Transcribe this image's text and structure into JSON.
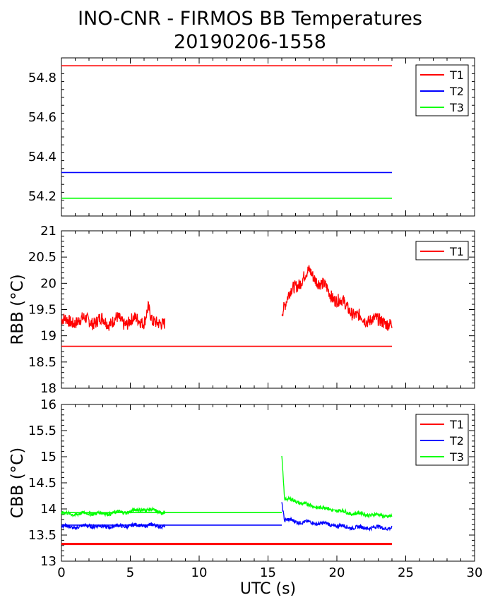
{
  "figure": {
    "title": "INO-CNR - FIRMOS BB Temperatures",
    "subtitle": "20190206-1558"
  },
  "colors": {
    "T1": "#ff0000",
    "T2": "#0000ff",
    "T3": "#00ff00",
    "axis": "#000000"
  },
  "chart_data": [
    {
      "type": "line",
      "title": "INO-CNR - FIRMOS BB Temperatures",
      "subtitle": "20190206-1558",
      "xlabel": "",
      "ylabel": "",
      "xlim": [
        0,
        30
      ],
      "ylim": [
        54.1,
        54.9
      ],
      "yticks": [
        "54.2",
        "54.4",
        "54.6",
        "54.8"
      ],
      "legend": "top-right",
      "grid": false,
      "series": [
        {
          "name": "T1",
          "color": "#ff0000",
          "x": [
            0,
            24
          ],
          "y": [
            54.86,
            54.86
          ]
        },
        {
          "name": "T2",
          "color": "#0000ff",
          "x": [
            0,
            24
          ],
          "y": [
            54.32,
            54.32
          ]
        },
        {
          "name": "T3",
          "color": "#00ff00",
          "x": [
            0,
            24
          ],
          "y": [
            54.19,
            54.19
          ]
        }
      ]
    },
    {
      "type": "line",
      "xlabel": "",
      "ylabel": "RBB (°C)",
      "xlim": [
        0,
        30
      ],
      "ylim": [
        18,
        21
      ],
      "yticks": [
        "18",
        "18.5",
        "19",
        "19.5",
        "20",
        "20.5",
        "21"
      ],
      "legend": "top-right",
      "grid": false,
      "series": [
        {
          "name": "T1",
          "color": "#ff0000",
          "x": [
            0,
            0.5,
            1,
            1.5,
            2,
            2.5,
            3,
            3.5,
            4,
            4.5,
            5,
            5.5,
            6,
            6.3,
            6.6,
            6.9,
            7.2,
            7.5,
            16,
            16.5,
            17,
            17.5,
            18,
            18.5,
            19,
            19.5,
            20,
            20.5,
            21,
            21.5,
            22,
            22.5,
            23,
            23.5,
            24
          ],
          "y": [
            19.3,
            19.25,
            19.3,
            19.28,
            19.32,
            19.25,
            19.3,
            19.27,
            19.3,
            19.25,
            19.3,
            19.28,
            19.3,
            19.55,
            19.2,
            19.25,
            19.3,
            19.25,
            19.5,
            19.75,
            19.95,
            20.1,
            20.2,
            20.1,
            19.95,
            19.8,
            19.7,
            19.6,
            19.5,
            19.35,
            19.3,
            19.35,
            19.25,
            19.3,
            19.2
          ],
          "baseline": {
            "x": [
              0,
              24
            ],
            "y": [
              18.8,
              18.8
            ]
          }
        }
      ]
    },
    {
      "type": "line",
      "xlabel": "UTC (s)",
      "ylabel": "CBB (°C)",
      "xlim": [
        0,
        30
      ],
      "ylim": [
        13,
        16
      ],
      "xticks": [
        "0",
        "5",
        "10",
        "15",
        "20",
        "25",
        "30"
      ],
      "yticks": [
        "13",
        "13.5",
        "14",
        "14.5",
        "15",
        "15.5",
        "16"
      ],
      "legend": "top-right",
      "grid": false,
      "series": [
        {
          "name": "T1",
          "color": "#ff0000",
          "x": [
            0,
            7.5,
            16,
            24
          ],
          "y": [
            13.32,
            13.32,
            13.32,
            13.32
          ],
          "baseline": {
            "x": [
              0,
              24
            ],
            "y": [
              13.34,
              13.34
            ]
          }
        },
        {
          "name": "T2",
          "color": "#0000ff",
          "x": [
            0,
            1,
            2,
            3,
            4,
            5,
            6,
            7,
            7.5,
            16,
            16.2,
            17,
            18,
            19,
            20,
            21,
            22,
            23,
            24
          ],
          "y": [
            13.67,
            13.65,
            13.68,
            13.66,
            13.67,
            13.68,
            13.69,
            13.68,
            13.68,
            14.12,
            13.8,
            13.76,
            13.74,
            13.72,
            13.68,
            13.65,
            13.64,
            13.65,
            13.63
          ],
          "baseline": {
            "x": [
              0,
              16
            ],
            "y": [
              13.69,
              13.69
            ]
          }
        },
        {
          "name": "T3",
          "color": "#00ff00",
          "x": [
            0,
            1,
            2,
            3,
            4,
            5,
            6,
            7,
            7.5,
            16,
            16.2,
            17,
            18,
            19,
            20,
            21,
            22,
            23,
            24
          ],
          "y": [
            13.92,
            13.9,
            13.92,
            13.91,
            13.93,
            13.95,
            14.0,
            13.95,
            13.94,
            15.03,
            14.2,
            14.15,
            14.07,
            14.02,
            13.97,
            13.92,
            13.9,
            13.88,
            13.86
          ],
          "baseline": {
            "x": [
              0,
              16
            ],
            "y": [
              13.93,
              13.93
            ]
          }
        }
      ]
    }
  ]
}
